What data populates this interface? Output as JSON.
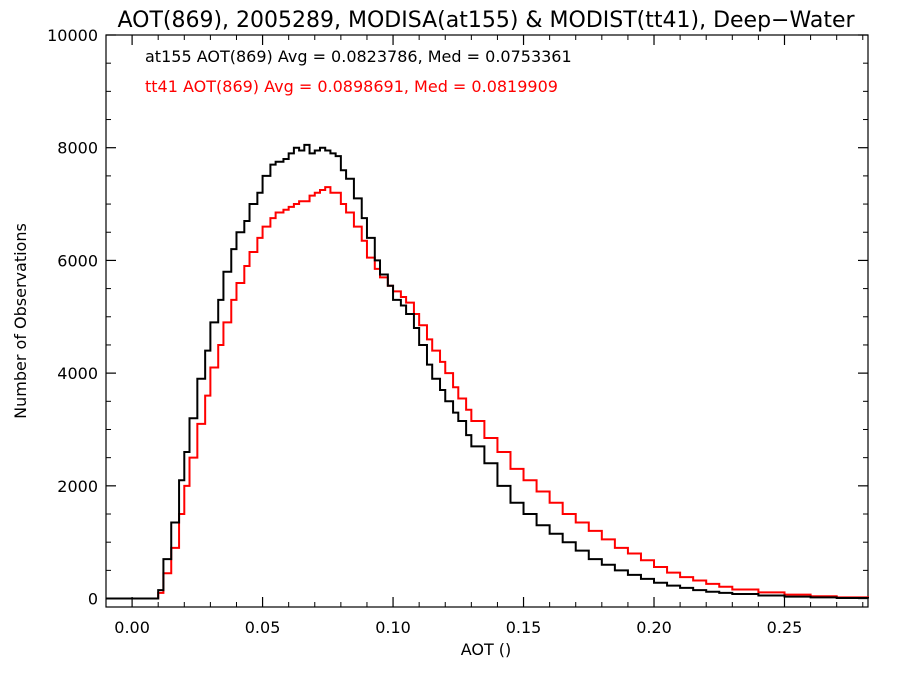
{
  "chart_data": {
    "type": "line",
    "title": "AOT(869), 2005289, MODISA(at155) & MODIST(tt41), Deep−Water",
    "xlabel": "AOT ()",
    "ylabel": "Number of Observations",
    "xlim": [
      -0.01,
      0.282
    ],
    "ylim": [
      -150,
      10000
    ],
    "x_ticks": [
      0.0,
      0.05,
      0.1,
      0.15,
      0.2,
      0.25
    ],
    "x_tick_labels": [
      "0.00",
      "0.05",
      "0.10",
      "0.15",
      "0.20",
      "0.25"
    ],
    "y_ticks": [
      0,
      2000,
      4000,
      6000,
      8000,
      10000
    ],
    "y_tick_labels": [
      "0",
      "2000",
      "4000",
      "6000",
      "8000",
      "10000"
    ],
    "grid": false,
    "step_style": "histogram-steps",
    "series": [
      {
        "color": "#000000",
        "x": [
          -0.01,
          0.0,
          0.005,
          0.008,
          0.01,
          0.012,
          0.015,
          0.018,
          0.02,
          0.022,
          0.025,
          0.028,
          0.03,
          0.033,
          0.035,
          0.038,
          0.04,
          0.043,
          0.045,
          0.048,
          0.05,
          0.053,
          0.055,
          0.058,
          0.06,
          0.062,
          0.064,
          0.066,
          0.068,
          0.07,
          0.072,
          0.074,
          0.076,
          0.078,
          0.08,
          0.082,
          0.085,
          0.088,
          0.09,
          0.093,
          0.095,
          0.098,
          0.1,
          0.103,
          0.105,
          0.108,
          0.11,
          0.113,
          0.115,
          0.118,
          0.12,
          0.123,
          0.125,
          0.128,
          0.13,
          0.135,
          0.14,
          0.145,
          0.15,
          0.155,
          0.16,
          0.165,
          0.17,
          0.175,
          0.18,
          0.185,
          0.19,
          0.195,
          0.2,
          0.205,
          0.21,
          0.215,
          0.22,
          0.225,
          0.23,
          0.24,
          0.25,
          0.26,
          0.27,
          0.282
        ],
        "values": [
          0,
          0,
          0,
          0,
          150,
          700,
          1350,
          2100,
          2600,
          3200,
          3900,
          4400,
          4900,
          5300,
          5800,
          6200,
          6500,
          6700,
          7000,
          7200,
          7500,
          7700,
          7750,
          7800,
          7900,
          8000,
          7950,
          8050,
          7900,
          7950,
          8000,
          7950,
          7900,
          7850,
          7600,
          7450,
          7100,
          6750,
          6400,
          6000,
          5750,
          5550,
          5300,
          5200,
          5050,
          4800,
          4500,
          4150,
          3900,
          3700,
          3500,
          3300,
          3150,
          2900,
          2700,
          2400,
          2000,
          1700,
          1500,
          1300,
          1150,
          1000,
          850,
          700,
          600,
          500,
          420,
          350,
          280,
          230,
          190,
          150,
          120,
          100,
          80,
          55,
          35,
          20,
          10,
          0
        ]
      },
      {
        "color": "#ff0000",
        "x": [
          -0.01,
          0.0,
          0.005,
          0.008,
          0.01,
          0.012,
          0.015,
          0.018,
          0.02,
          0.022,
          0.025,
          0.028,
          0.03,
          0.033,
          0.035,
          0.038,
          0.04,
          0.043,
          0.045,
          0.048,
          0.05,
          0.053,
          0.055,
          0.058,
          0.06,
          0.062,
          0.064,
          0.066,
          0.068,
          0.07,
          0.072,
          0.074,
          0.076,
          0.078,
          0.08,
          0.082,
          0.085,
          0.088,
          0.09,
          0.093,
          0.095,
          0.098,
          0.1,
          0.103,
          0.105,
          0.108,
          0.11,
          0.113,
          0.115,
          0.118,
          0.12,
          0.123,
          0.125,
          0.128,
          0.13,
          0.135,
          0.14,
          0.145,
          0.15,
          0.155,
          0.16,
          0.165,
          0.17,
          0.175,
          0.18,
          0.185,
          0.19,
          0.195,
          0.2,
          0.205,
          0.21,
          0.215,
          0.22,
          0.225,
          0.23,
          0.24,
          0.25,
          0.26,
          0.27,
          0.282
        ],
        "values": [
          0,
          0,
          0,
          0,
          100,
          450,
          900,
          1500,
          2000,
          2500,
          3100,
          3600,
          4100,
          4500,
          4900,
          5300,
          5600,
          5900,
          6150,
          6400,
          6600,
          6750,
          6850,
          6900,
          6950,
          7000,
          7050,
          7050,
          7150,
          7200,
          7250,
          7300,
          7200,
          7200,
          7000,
          6850,
          6600,
          6350,
          6050,
          5850,
          5700,
          5550,
          5450,
          5350,
          5250,
          5050,
          4850,
          4600,
          4400,
          4200,
          4000,
          3750,
          3550,
          3350,
          3150,
          2850,
          2600,
          2300,
          2100,
          1900,
          1700,
          1500,
          1350,
          1200,
          1050,
          900,
          800,
          680,
          560,
          460,
          380,
          320,
          260,
          210,
          160,
          110,
          70,
          40,
          20,
          0
        ]
      }
    ],
    "annotations": [
      {
        "text": "at155 AOT(869) Avg = 0.0823786, Med = 0.0753361",
        "color": "#000000"
      },
      {
        "text": "tt41 AOT(869) Avg = 0.0898691, Med = 0.0819909",
        "color": "#ff0000"
      }
    ]
  }
}
